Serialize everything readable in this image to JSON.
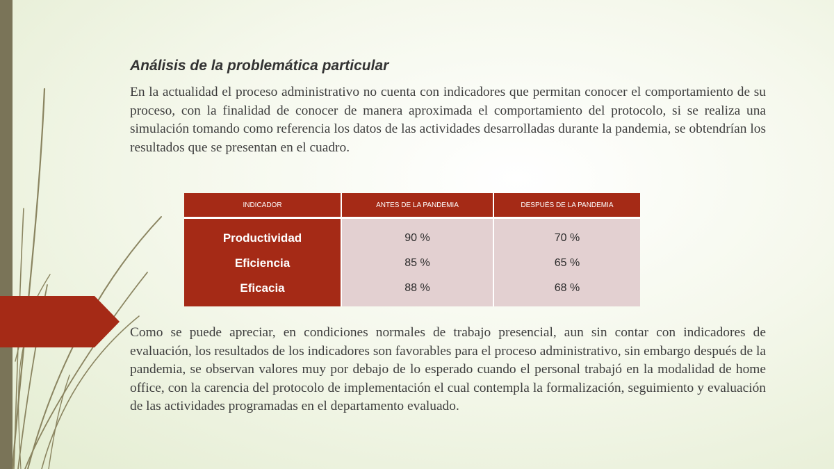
{
  "slide": {
    "title": "Análisis de la problemática particular",
    "paragraph1": "En la actualidad el proceso administrativo no cuenta con indicadores que permitan conocer el comportamiento de su proceso, con la finalidad de conocer de manera aproximada el comportamiento del protocolo, si se realiza una simulación tomando como referencia los datos de las actividades desarrolladas durante la pandemia, se obtendrían los resultados que se presentan en el cuadro.",
    "paragraph2": "Como se puede apreciar, en condiciones normales de trabajo presencial, aun sin contar con indicadores de evaluación, los resultados de los indicadores son favorables para el proceso administrativo, sin embargo después de la pandemia, se observan valores muy por debajo de lo esperado cuando el personal trabajó en la modalidad de home office, con la carencia del protocolo de implementación el cual contempla la formalización, seguimiento y evaluación de las actividades programadas en el departamento evaluado."
  },
  "table": {
    "headers": [
      "INDICADOR",
      "ANTES DE LA PANDEMIA",
      "DESPUÉS DE LA PANDEMIA"
    ],
    "rows": [
      {
        "indicator": "Productividad",
        "before": "90 %",
        "after": "70 %"
      },
      {
        "indicator": "Eficiencia",
        "before": "85 %",
        "after": "65 %"
      },
      {
        "indicator": "Eficacia",
        "before": "88 %",
        "after": "68 %"
      }
    ]
  },
  "colors": {
    "accent": "#a52a16",
    "cell_background": "#e3d0d1",
    "left_bar": "#7a7458",
    "stems": "#8a8460"
  },
  "icons": {
    "decoration": "grass-stems-decoration",
    "arrow": "red-arrow-shape"
  }
}
